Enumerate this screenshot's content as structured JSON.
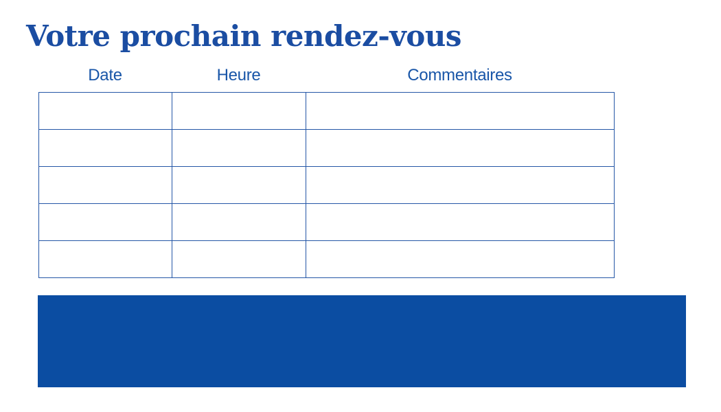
{
  "title": "Votre prochain rendez-vous",
  "table": {
    "columns": [
      {
        "label": "Date"
      },
      {
        "label": "Heure"
      },
      {
        "label": "Commentaires"
      }
    ],
    "row_count": 5,
    "cell_values": [
      [
        "",
        "",
        ""
      ],
      [
        "",
        "",
        ""
      ],
      [
        "",
        "",
        ""
      ],
      [
        "",
        "",
        ""
      ],
      [
        "",
        "",
        ""
      ]
    ]
  },
  "footer_band": {
    "label": ""
  },
  "colors": {
    "title_blue": "#1b4da2",
    "header_blue": "#1956a8",
    "table_border_blue": "#2456a6",
    "band_blue": "#0b4da2",
    "page_bg": "#ffffff"
  }
}
